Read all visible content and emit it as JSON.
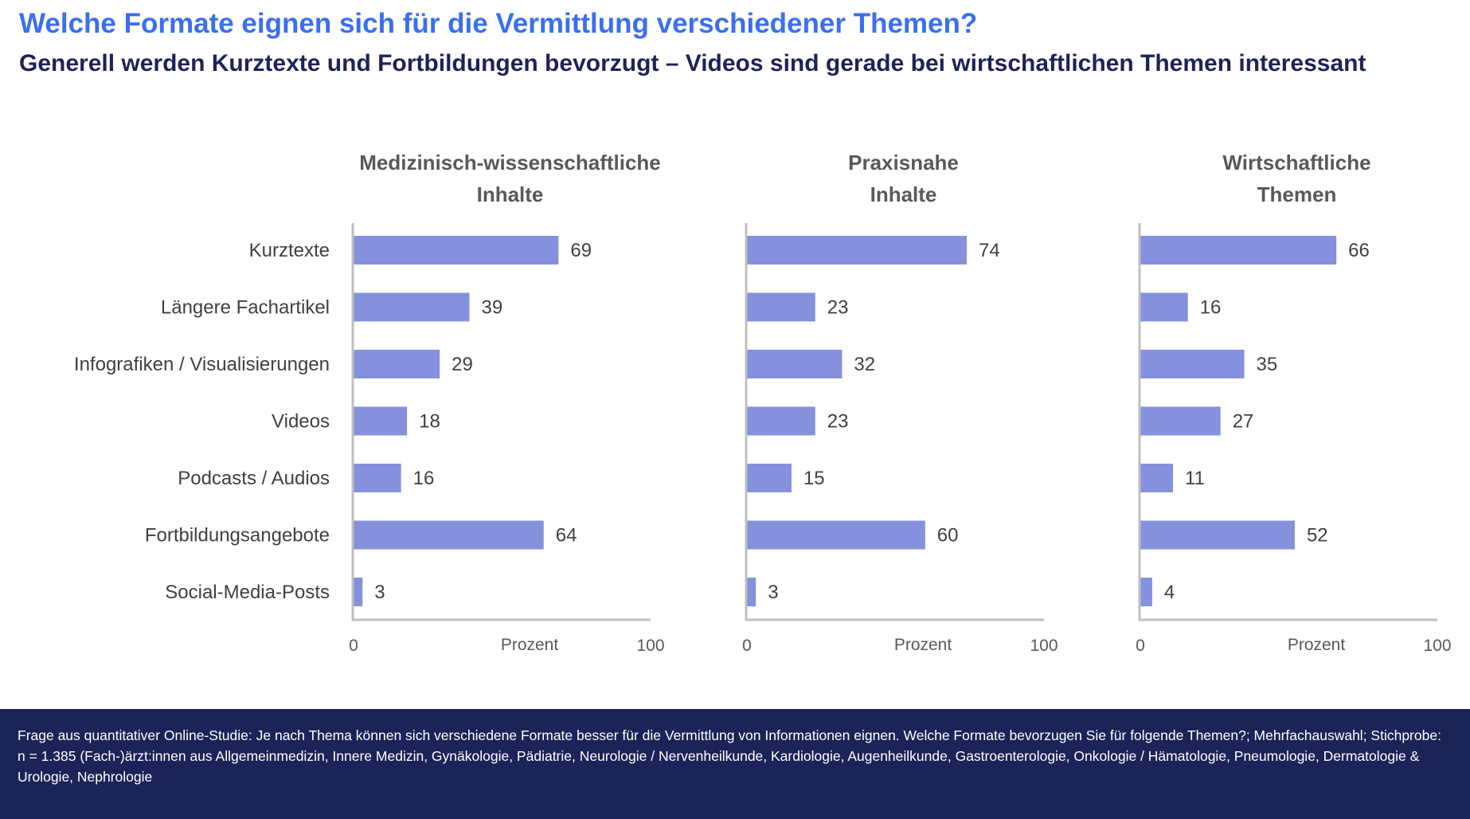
{
  "title": "Welche Formate eignen sich für die Vermittlung verschiedener Themen?",
  "subtitle": "Generell werden Kurztexte und Fortbildungen bevorzugt – Videos sind gerade bei wirtschaftlichen Themen interessant",
  "colors": {
    "bar": "#8591dc",
    "axis": "#bfbfbf",
    "title": "#3b6ef0",
    "subtitle": "#1c2358",
    "footer_bg": "#1c2358",
    "text": "#404040",
    "panel_title": "#595959"
  },
  "chart_data": {
    "type": "bar",
    "orientation": "horizontal",
    "categories": [
      "Kurztexte",
      "Längere Fachartikel",
      "Infografiken / Visualisierungen",
      "Videos",
      "Podcasts / Audios",
      "Fortbildungsangebote",
      "Social-Media-Posts"
    ],
    "xlim": [
      0,
      100
    ],
    "xlabel": "Prozent",
    "x_tick_labels": [
      "0",
      "100"
    ],
    "panels": [
      {
        "title_lines": [
          "Medizinisch-wissenschaftliche",
          "Inhalte"
        ],
        "values": [
          69,
          39,
          29,
          18,
          16,
          64,
          3
        ]
      },
      {
        "title_lines": [
          "Praxisnahe",
          "Inhalte"
        ],
        "values": [
          74,
          23,
          32,
          23,
          15,
          60,
          3
        ]
      },
      {
        "title_lines": [
          "Wirtschaftliche",
          "Themen"
        ],
        "values": [
          66,
          16,
          35,
          27,
          11,
          52,
          4
        ]
      }
    ]
  },
  "footer": {
    "text": "Frage aus quantitativer Online-Studie: Je nach Thema können sich verschiedene Formate besser für die Vermittlung von Informationen eignen. Welche Formate bevorzugen Sie für folgende Themen?; Mehrfachauswahl; Stichprobe: n = 1.385 (Fach-)ärzt:innen aus Allgemeinmedizin, Innere Medizin, Gynäkologie, Pädiatrie, Neurologie / Nervenheilkunde, Kardiologie, Augenheilkunde, Gastroenterologie, Onkologie / Hämatologie, Pneumologie, Dermatologie & Urologie, Nephrologie"
  }
}
